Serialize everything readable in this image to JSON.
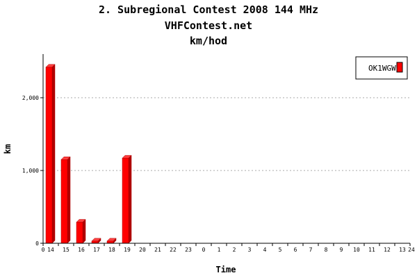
{
  "titles": [
    "2. Subregional Contest 2008 144 MHz",
    "VHFContest.net",
    "km/hod"
  ],
  "chart_data": {
    "type": "bar",
    "title": "2. Subregional Contest 2008 144 MHz",
    "subtitle": [
      "VHFContest.net",
      "km/hod"
    ],
    "xlabel": "Time",
    "ylabel": "km",
    "x_axis_min_label": "0",
    "x_axis_max_label": "24",
    "categories": [
      "14",
      "15",
      "16",
      "17",
      "18",
      "19",
      "20",
      "21",
      "22",
      "23",
      "0",
      "1",
      "2",
      "3",
      "4",
      "5",
      "6",
      "7",
      "8",
      "9",
      "10",
      "11",
      "12",
      "13"
    ],
    "series": [
      {
        "name": "OK1WGW",
        "color": "#ff0000",
        "values": [
          2420,
          1150,
          290,
          30,
          30,
          1170,
          0,
          0,
          0,
          0,
          0,
          0,
          0,
          0,
          0,
          0,
          0,
          0,
          0,
          0,
          0,
          0,
          0,
          0
        ]
      }
    ],
    "ylim": [
      0,
      2600
    ],
    "yticks": [
      0,
      1000,
      2000
    ],
    "ytick_labels": [
      "0",
      "1,000",
      "2,000"
    ],
    "grid": "horizontal dotted",
    "legend": "top-right"
  }
}
